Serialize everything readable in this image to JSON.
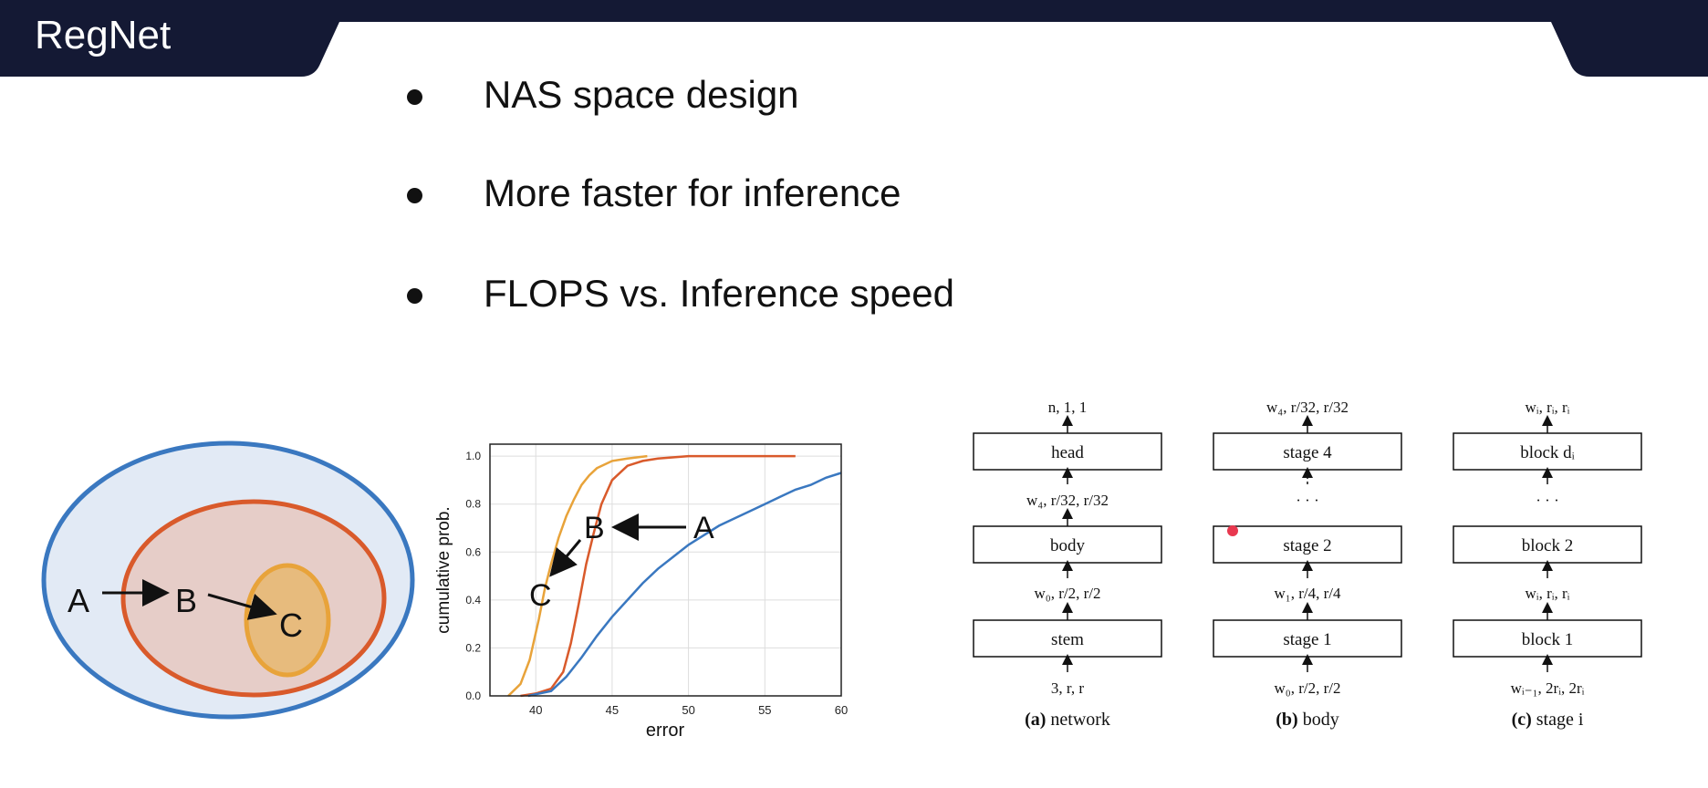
{
  "header": {
    "title": "RegNet"
  },
  "bullets": [
    "NAS space design",
    "More faster for inference",
    "FLOPS vs. Inference speed"
  ],
  "venn": {
    "labels": [
      "A",
      "B",
      "C"
    ]
  },
  "chart_data": {
    "type": "line",
    "title": "",
    "xlabel": "error",
    "ylabel": "cumulative prob.",
    "xlim": [
      37,
      60
    ],
    "ylim": [
      0,
      1.05
    ],
    "xticks": [
      40,
      45,
      50,
      55,
      60
    ],
    "yticks": [
      0.0,
      0.2,
      0.4,
      0.6,
      0.8,
      1.0
    ],
    "ytick_labels": [
      "0.0",
      "0.2",
      "0.4",
      "0.6",
      "0.8",
      "1.0"
    ],
    "grid": true,
    "annotations": [
      "A",
      "B",
      "C"
    ],
    "series": [
      {
        "color": "#e8a33a",
        "x": [
          38.2,
          39.0,
          39.6,
          40.2,
          40.6,
          41.0,
          41.5,
          42.0,
          42.5,
          43.0,
          43.5,
          44.0,
          45.0,
          46.0,
          47.3
        ],
        "y": [
          0.0,
          0.05,
          0.15,
          0.32,
          0.45,
          0.55,
          0.66,
          0.75,
          0.82,
          0.88,
          0.92,
          0.95,
          0.98,
          0.99,
          1.0
        ]
      },
      {
        "color": "#d95a2b",
        "x": [
          39.0,
          40.0,
          41.0,
          41.8,
          42.3,
          42.8,
          43.3,
          43.8,
          44.3,
          45.0,
          46.0,
          47.0,
          48.0,
          50.0,
          53.0,
          57.0
        ],
        "y": [
          0.0,
          0.01,
          0.03,
          0.1,
          0.22,
          0.38,
          0.55,
          0.68,
          0.8,
          0.9,
          0.96,
          0.98,
          0.99,
          1.0,
          1.0,
          1.0
        ]
      },
      {
        "color": "#3a78c0",
        "x": [
          39.5,
          41.0,
          42.0,
          43.0,
          44.0,
          45.0,
          46.0,
          47.0,
          48.0,
          49.0,
          50.0,
          51.0,
          52.0,
          53.0,
          54.0,
          55.0,
          56.0,
          57.0,
          58.0,
          59.0,
          60.0
        ],
        "y": [
          0.0,
          0.02,
          0.08,
          0.16,
          0.25,
          0.33,
          0.4,
          0.47,
          0.53,
          0.58,
          0.63,
          0.67,
          0.71,
          0.74,
          0.77,
          0.8,
          0.83,
          0.86,
          0.88,
          0.91,
          0.93
        ]
      }
    ]
  },
  "diagram": {
    "columns": [
      {
        "top": "n, 1, 1",
        "boxes": [
          "head",
          "body",
          "stem"
        ],
        "mid1": "w₄, r/32, r/32",
        "mid2": "w₀, r/2, r/2",
        "bottom": "3, r, r",
        "caption_bold": "(a)",
        "caption_rest": " network"
      },
      {
        "top": "w₄, r/32, r/32",
        "boxes": [
          "stage 4",
          "stage 2",
          "stage 1"
        ],
        "mid1": "· · ·",
        "mid2": "w₁, r/4, r/4",
        "bottom": "w₀, r/2, r/2",
        "caption_bold": "(b)",
        "caption_rest": " body"
      },
      {
        "top": "wᵢ, rᵢ, rᵢ",
        "boxes": [
          "block dᵢ",
          "block 2",
          "block 1"
        ],
        "mid1": "· · ·",
        "mid2": "wᵢ, rᵢ, rᵢ",
        "bottom": "wᵢ₋₁, 2rᵢ, 2rᵢ",
        "caption_bold": "(c)",
        "caption_rest": " stage i"
      }
    ]
  },
  "colors": {
    "header_bg": "#141934",
    "pointer_dot": "#e8384f"
  }
}
